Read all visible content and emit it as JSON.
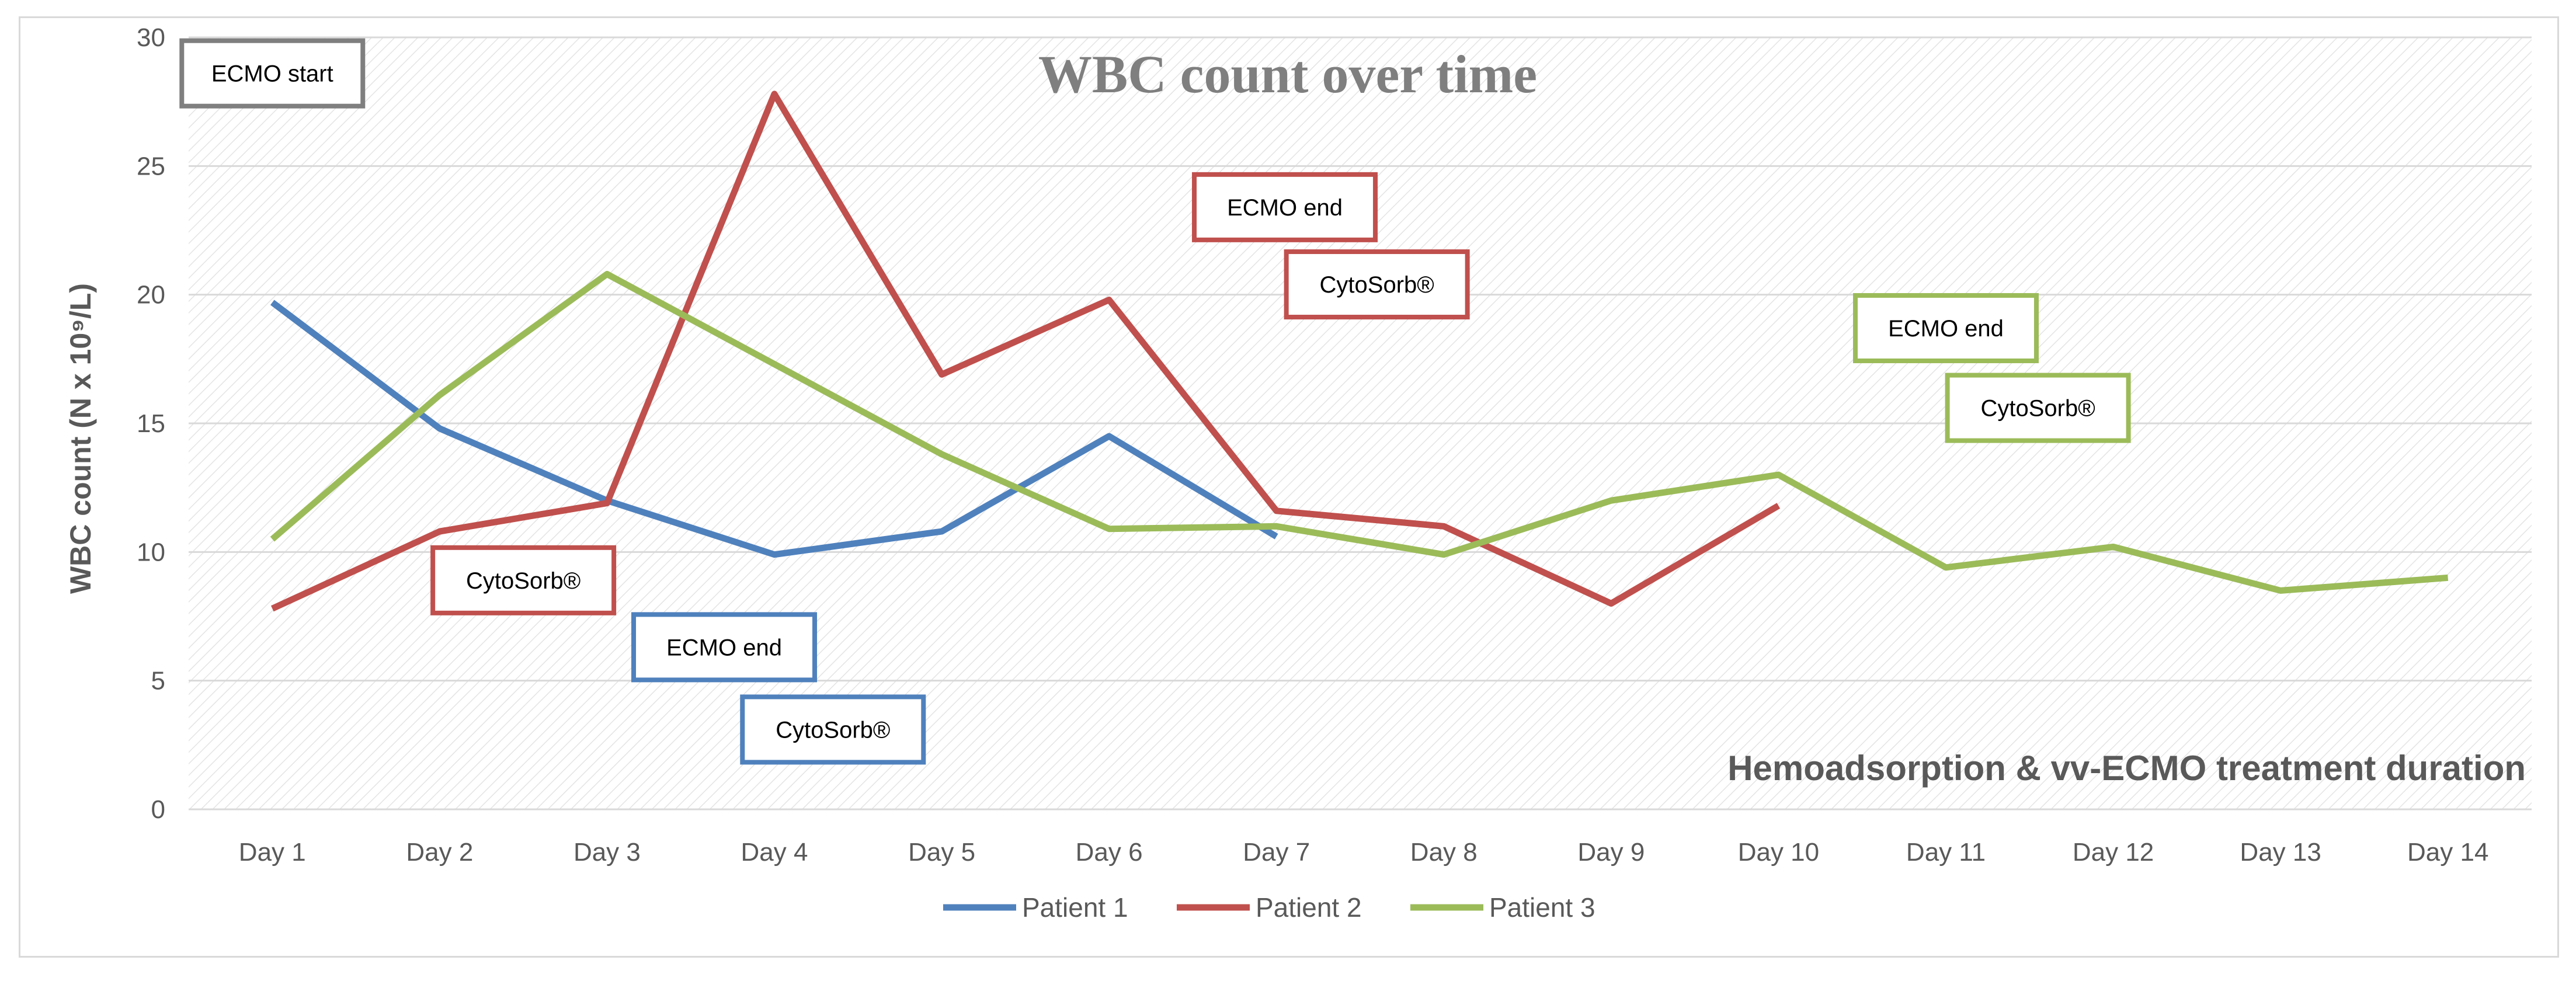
{
  "chart_data": {
    "type": "line",
    "title": "WBC count over time",
    "subtitle": "Hemoadsorption & vv-ECMO treatment duration",
    "xlabel": "",
    "ylabel": "WBC count (N x 10⁹/L)",
    "ylim": [
      0,
      30
    ],
    "yticks": [
      0,
      5,
      10,
      15,
      20,
      25,
      30
    ],
    "grid": true,
    "legend_position": "bottom",
    "categories": [
      "Day 1",
      "Day 2",
      "Day 3",
      "Day 4",
      "Day 5",
      "Day 6",
      "Day 7",
      "Day 8",
      "Day 9",
      "Day 10",
      "Day 11",
      "Day 12",
      "Day 13",
      "Day 14"
    ],
    "series": [
      {
        "name": "Patient 1",
        "color": "#4f81bd",
        "values": [
          19.7,
          14.8,
          12.0,
          9.9,
          10.8,
          14.5,
          10.6,
          null,
          null,
          null,
          null,
          null,
          null,
          null
        ]
      },
      {
        "name": "Patient 2",
        "color": "#c0504d",
        "values": [
          7.8,
          10.8,
          11.9,
          27.8,
          16.9,
          19.8,
          11.6,
          11.0,
          8.0,
          11.8,
          null,
          null,
          null,
          null
        ]
      },
      {
        "name": "Patient 3",
        "color": "#9bbb59",
        "values": [
          10.5,
          16.1,
          20.8,
          17.3,
          13.8,
          10.9,
          11.0,
          9.9,
          12.0,
          13.0,
          9.4,
          10.2,
          8.5,
          9.0
        ]
      }
    ],
    "annotations": [
      {
        "text": "ECMO start",
        "color": "#7f7f7f",
        "day": 1,
        "y": 28.6
      },
      {
        "text": "CytoSorb®",
        "color": "#c0504d",
        "day": 2.5,
        "y": 8.9
      },
      {
        "text": "ECMO end",
        "color": "#4f81bd",
        "day": 3.7,
        "y": 6.3
      },
      {
        "text": "CytoSorb®",
        "color": "#4f81bd",
        "day": 4.35,
        "y": 3.1
      },
      {
        "text": "ECMO end",
        "color": "#c0504d",
        "day": 7.05,
        "y": 23.4
      },
      {
        "text": "CytoSorb®",
        "color": "#c0504d",
        "day": 7.6,
        "y": 20.4
      },
      {
        "text": "ECMO end",
        "color": "#9bbb59",
        "day": 11.0,
        "y": 18.7
      },
      {
        "text": "CytoSorb®",
        "color": "#9bbb59",
        "day": 11.55,
        "y": 15.6
      }
    ]
  }
}
